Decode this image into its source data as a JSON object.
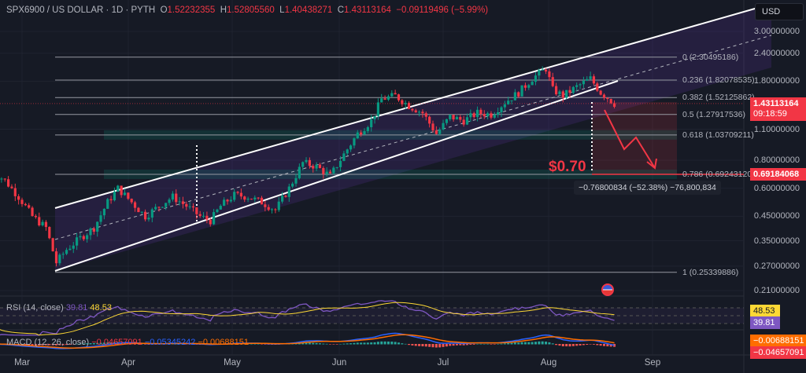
{
  "legend": {
    "symbol": "SPX6900 / US DOLLAR · 1D · PYTH",
    "open_label": "O",
    "open": "1.52232355",
    "high_label": "H",
    "high": "1.52805560",
    "low_label": "L",
    "low": "1.40438271",
    "close_label": "C",
    "close": "1.43113164",
    "change": "−0.09119496 (−5.99%)"
  },
  "currency": "USD",
  "price_tag": {
    "price": "1.43113164",
    "countdown": "09:18:59"
  },
  "target_tag": "0.69184068",
  "target_text": "$0.70",
  "measure_text": "−0.76800834 (−52.38%) −76,800,834",
  "colors": {
    "up": "#089981",
    "down": "#f23645",
    "channel": "#ffffff",
    "rsi": "#7e57c2",
    "rsi_ma": "#fdd835",
    "macd": "#2962ff",
    "signal": "#ff6d00"
  },
  "chart_data": {
    "type": "candlestick",
    "scale": "log",
    "ylim": [
      0.21,
      3.0
    ],
    "y_ticks": [
      "3.00000000",
      "2.40000000",
      "1.80000000",
      "1.10000000",
      "0.80000000",
      "0.60000000",
      "0.45000000",
      "0.35000000",
      "0.27000000",
      "0.21000000"
    ],
    "y_tick_values": [
      3.0,
      2.4,
      1.8,
      1.1,
      0.8,
      0.6,
      0.45,
      0.35,
      0.27,
      0.21
    ],
    "x_ticks": [
      "Mar",
      "Apr",
      "May",
      "Jun",
      "Jul",
      "Aug",
      "Sep"
    ],
    "closes": [
      [
        "02-20",
        0.72
      ],
      [
        "02-24",
        0.65
      ],
      [
        "02-28",
        0.55
      ],
      [
        "03-04",
        0.45
      ],
      [
        "03-08",
        0.4
      ],
      [
        "03-11",
        0.28
      ],
      [
        "03-14",
        0.32
      ],
      [
        "03-18",
        0.36
      ],
      [
        "03-22",
        0.4
      ],
      [
        "03-26",
        0.52
      ],
      [
        "03-29",
        0.6
      ],
      [
        "04-02",
        0.52
      ],
      [
        "04-06",
        0.45
      ],
      [
        "04-10",
        0.5
      ],
      [
        "04-14",
        0.55
      ],
      [
        "04-18",
        0.5
      ],
      [
        "04-22",
        0.45
      ],
      [
        "04-25",
        0.43
      ],
      [
        "04-28",
        0.5
      ],
      [
        "05-02",
        0.56
      ],
      [
        "05-06",
        0.55
      ],
      [
        "05-10",
        0.52
      ],
      [
        "05-14",
        0.48
      ],
      [
        "05-18",
        0.6
      ],
      [
        "05-22",
        0.78
      ],
      [
        "05-26",
        0.75
      ],
      [
        "05-30",
        0.68
      ],
      [
        "06-03",
        0.85
      ],
      [
        "06-07",
        1.05
      ],
      [
        "06-11",
        1.2
      ],
      [
        "06-14",
        1.5
      ],
      [
        "06-18",
        1.55
      ],
      [
        "06-22",
        1.4
      ],
      [
        "06-26",
        1.3
      ],
      [
        "06-30",
        1.05
      ],
      [
        "07-04",
        1.25
      ],
      [
        "07-08",
        1.2
      ],
      [
        "07-12",
        1.3
      ],
      [
        "07-16",
        1.28
      ],
      [
        "07-20",
        1.45
      ],
      [
        "07-24",
        1.6
      ],
      [
        "07-28",
        1.85
      ],
      [
        "08-01",
        2.05
      ],
      [
        "08-03",
        1.65
      ],
      [
        "08-06",
        1.55
      ],
      [
        "08-10",
        1.7
      ],
      [
        "08-14",
        1.85
      ],
      [
        "08-17",
        1.6
      ],
      [
        "08-19",
        1.52
      ],
      [
        "08-21",
        1.43
      ]
    ],
    "fib_levels": [
      {
        "label": "0 (2.30495186)",
        "value": 2.30495186
      },
      {
        "label": "0.236 (1.82078535)",
        "value": 1.82078535
      },
      {
        "label": "0.382 (1.52125862)",
        "value": 1.52125862
      },
      {
        "label": "0.5 (1.27917536)",
        "value": 1.27917536
      },
      {
        "label": "0.618 (1.03709211)",
        "value": 1.03709211
      },
      {
        "label": "0.786 (0.69243120)",
        "value": 0.6924312
      },
      {
        "label": "1 (0.25339886)",
        "value": 0.25339886
      }
    ],
    "rsi": {
      "label": "RSI (14, close)",
      "value": "39.81",
      "ma": "48.53"
    },
    "macd": {
      "label": "MACD (12, 26, close)",
      "hist": "−0.04657091",
      "macd": "−0.05345242",
      "signal": "−0.00688151",
      "tag_signal": "−0.00688151",
      "tag_hist": "−0.04657091"
    }
  }
}
